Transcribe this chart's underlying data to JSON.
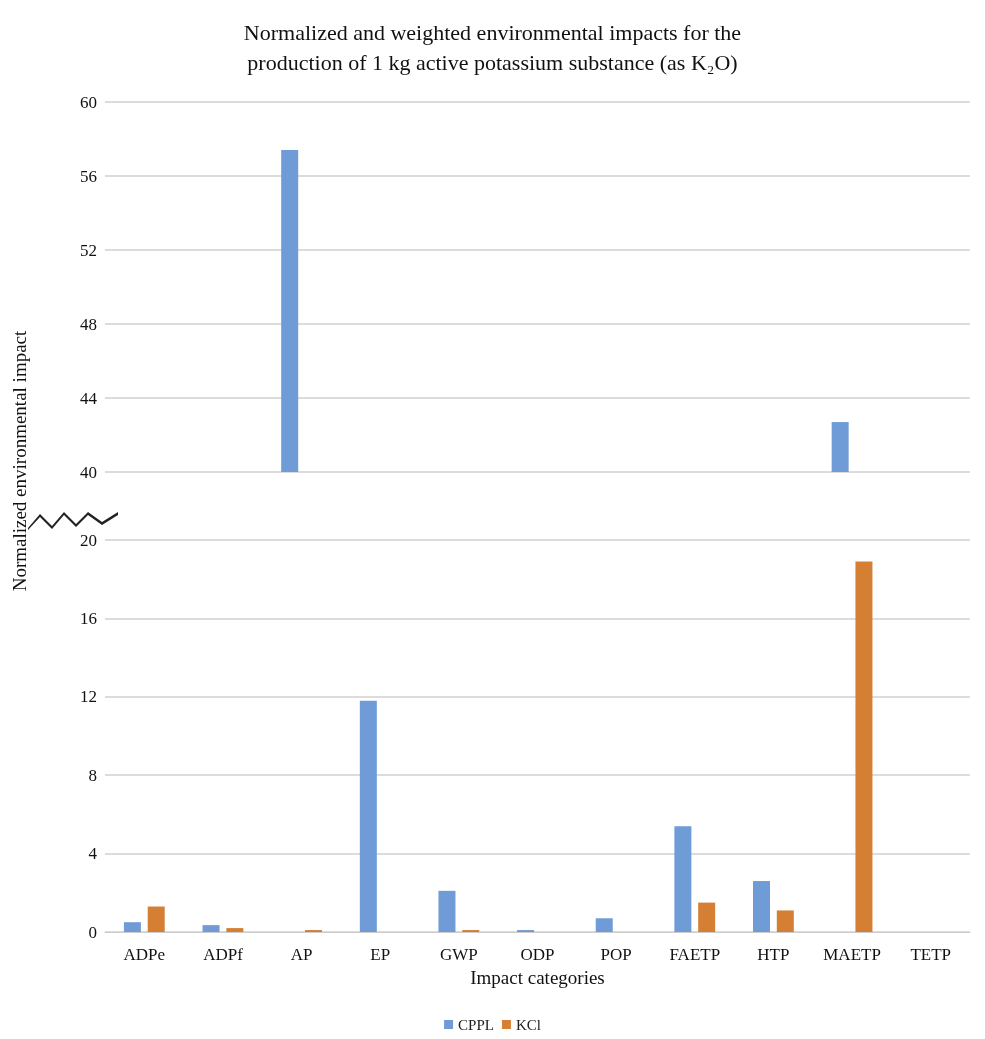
{
  "chart_data": [
    {
      "type": "bar",
      "title": "Normalized and weighted environmental impacts for the\nproduction of 1 kg active potassium substance (as K₂O)",
      "series": [
        {
          "color": "#6f9bd6",
          "values": [
            null,
            null,
            57.4,
            null,
            null,
            null,
            null,
            null,
            null,
            42.7,
            null
          ]
        },
        {
          "color": "#d57f35",
          "values": [
            null,
            null,
            null,
            null,
            null,
            null,
            null,
            null,
            null,
            null,
            null
          ]
        }
      ],
      "ylim": [
        40,
        60
      ],
      "yticks": [
        40,
        44,
        48,
        52,
        56,
        60
      ],
      "grid": "y",
      "tick_labels": "y",
      "legend": false
    },
    {
      "type": "bar",
      "xlabel": "Impact categories",
      "ylabel": "Normalized environmental impact",
      "categories": [
        "ADPe",
        "ADPf",
        "AP",
        "EP",
        "GWP",
        "ODP",
        "POP",
        "FAETP",
        "HTP",
        "MAETP",
        "TETP"
      ],
      "series": [
        {
          "name": "CPPL",
          "color": "#6f9bd6",
          "values": [
            0.5,
            0.35,
            null,
            11.8,
            2.1,
            0.1,
            0.7,
            5.4,
            2.6,
            null,
            0
          ]
        },
        {
          "name": "KCl",
          "color": "#d57f35",
          "values": [
            1.3,
            0.2,
            0.1,
            0,
            0.1,
            0,
            0,
            1.5,
            1.1,
            18.9,
            0
          ]
        }
      ],
      "ylim": [
        0,
        20
      ],
      "yticks": [
        0,
        4,
        8,
        12,
        16,
        20
      ],
      "grid": "y",
      "legend": "bottom"
    }
  ]
}
